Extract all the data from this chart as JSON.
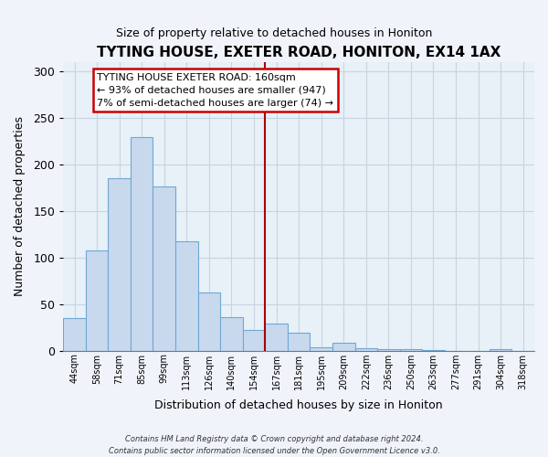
{
  "title": "TYTING HOUSE, EXETER ROAD, HONITON, EX14 1AX",
  "subtitle": "Size of property relative to detached houses in Honiton",
  "xlabel": "Distribution of detached houses by size in Honiton",
  "ylabel": "Number of detached properties",
  "bar_labels": [
    "44sqm",
    "58sqm",
    "71sqm",
    "85sqm",
    "99sqm",
    "113sqm",
    "126sqm",
    "140sqm",
    "154sqm",
    "167sqm",
    "181sqm",
    "195sqm",
    "209sqm",
    "222sqm",
    "236sqm",
    "250sqm",
    "263sqm",
    "277sqm",
    "291sqm",
    "304sqm",
    "318sqm"
  ],
  "bar_values": [
    35,
    108,
    185,
    229,
    176,
    117,
    62,
    36,
    22,
    29,
    19,
    4,
    8,
    3,
    2,
    2,
    1,
    0,
    0,
    2,
    0
  ],
  "bar_color": "#c8d9ee",
  "bar_edge_color": "#6fa8d4",
  "vline_x": 8.5,
  "vline_color": "#aa0000",
  "ylim": [
    0,
    310
  ],
  "yticks": [
    0,
    50,
    100,
    150,
    200,
    250,
    300
  ],
  "annotation_title": "TYTING HOUSE EXETER ROAD: 160sqm",
  "annotation_line1": "← 93% of detached houses are smaller (947)",
  "annotation_line2": "7% of semi-detached houses are larger (74) →",
  "footer_line1": "Contains HM Land Registry data © Crown copyright and database right 2024.",
  "footer_line2": "Contains public sector information licensed under the Open Government Licence v3.0.",
  "bg_color": "#f0f4fa",
  "plot_bg_color": "#e8f0f8",
  "grid_color": "#c8d4e0",
  "spine_color": "#5a7fa0"
}
